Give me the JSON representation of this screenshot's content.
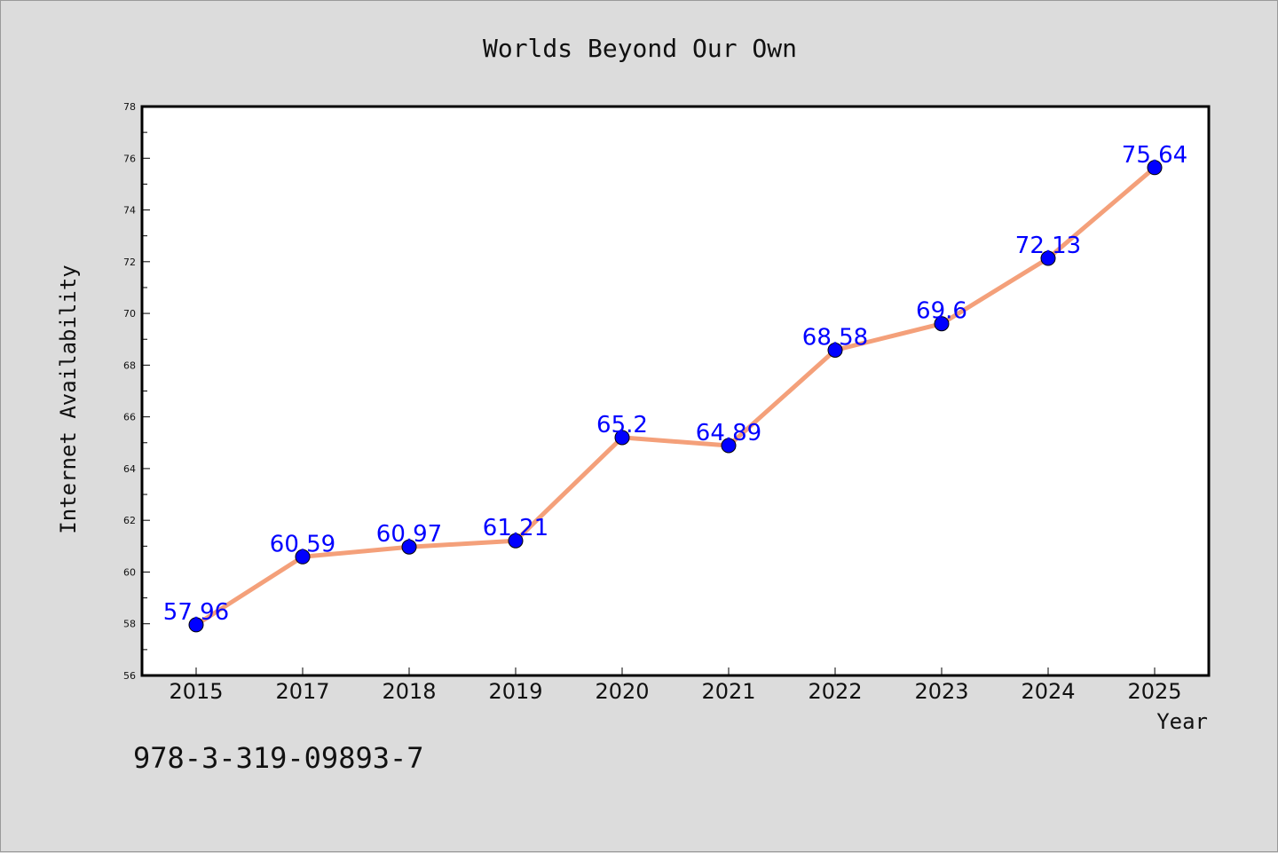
{
  "chart_data": {
    "type": "line",
    "title": "Worlds Beyond Our Own",
    "xlabel": "Year",
    "ylabel": "Internet Availability",
    "categories": [
      "2015",
      "2017",
      "2018",
      "2019",
      "2020",
      "2021",
      "2022",
      "2023",
      "2024",
      "2025"
    ],
    "series": [
      {
        "values": [
          57.96,
          60.59,
          60.97,
          61.21,
          65.2,
          64.89,
          68.58,
          69.6,
          72.13,
          75.64
        ],
        "point_labels": [
          "57.96",
          "60.59",
          "60.97",
          "61.21",
          "65.2",
          "64.89",
          "68.58",
          "69.6",
          "72.13",
          "75.64"
        ]
      }
    ],
    "ylim": [
      56,
      78
    ],
    "yticks": [
      "56",
      "58",
      "60",
      "62",
      "64",
      "66",
      "68",
      "70",
      "72",
      "74",
      "76",
      "78"
    ],
    "grid": false,
    "legend": "none",
    "colors": {
      "line": "#f4a07a",
      "marker": "#0000ff",
      "data_label": "#0000ff",
      "plot_background": "#ffffff",
      "figure_background": "#dcdcdc"
    }
  },
  "footer_code": "978-3-319-09893-7"
}
